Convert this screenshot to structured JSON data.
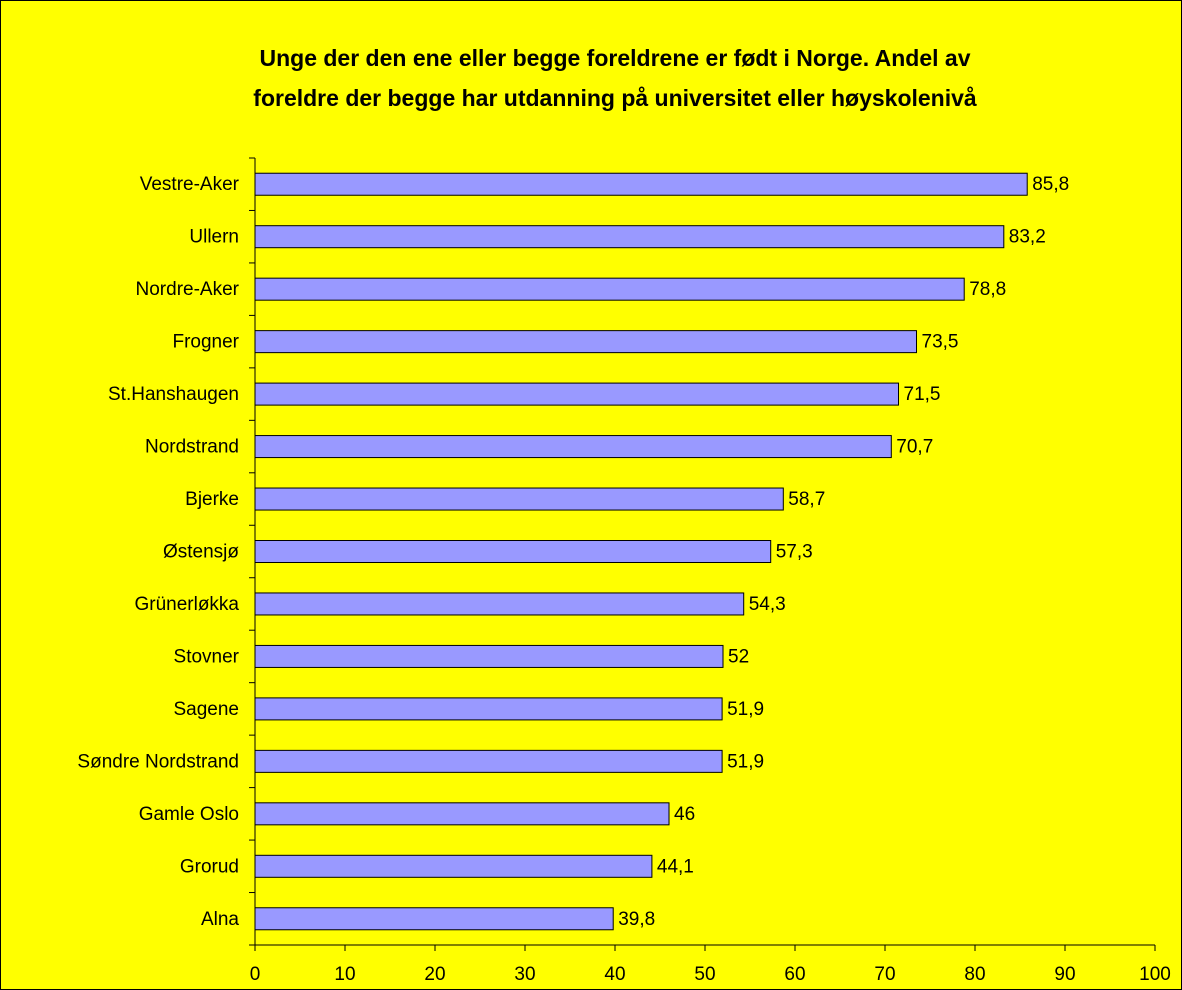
{
  "chart_data": {
    "type": "bar",
    "orientation": "horizontal",
    "title": [
      "Unge der den ene eller begge foreldrene er født i Norge. Andel av",
      "foreldre der begge har utdanning på universitet eller høyskolenivå"
    ],
    "categories": [
      "Vestre-Aker",
      "Ullern",
      "Nordre-Aker",
      "Frogner",
      "St.Hanshaugen",
      "Nordstrand",
      "Bjerke",
      "Østensjø",
      "Grünerløkka",
      "Stovner",
      "Sagene",
      "Søndre Nordstrand",
      "Gamle Oslo",
      "Grorud",
      "Alna"
    ],
    "values": [
      85.8,
      83.2,
      78.8,
      73.5,
      71.5,
      70.7,
      58.7,
      57.3,
      54.3,
      52,
      51.9,
      51.9,
      46,
      44.1,
      39.8
    ],
    "value_labels": [
      "85,8",
      "83,2",
      "78,8",
      "73,5",
      "71,5",
      "70,7",
      "58,7",
      "57,3",
      "54,3",
      "52",
      "51,9",
      "51,9",
      "46",
      "44,1",
      "39,8"
    ],
    "color": "#9999ff",
    "xlim": [
      0,
      100
    ],
    "xticks": [
      0,
      10,
      20,
      30,
      40,
      50,
      60,
      70,
      80,
      90,
      100
    ]
  }
}
